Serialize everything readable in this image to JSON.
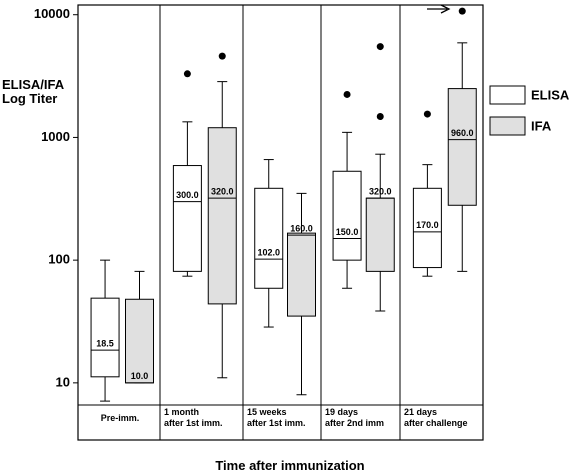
{
  "chart_data": {
    "type": "box",
    "y_title": "ELISA/IFA\nLog Titer",
    "x_title": "Time after immunization",
    "categories": [
      "Pre-imm.",
      "1 month\nafter 1st imm.",
      "15 weeks\nafter 1st imm.",
      "19 days\nafter 2nd imm",
      "21 days\nafter challenge"
    ],
    "log_scale": true,
    "ylim": [
      6.6,
      12000
    ],
    "yticks": [
      10,
      100,
      1000,
      10000
    ],
    "series": [
      {
        "name": "ELISA",
        "color": "#ffffff",
        "low": [
          7.1,
          74,
          28.5,
          59,
          74
        ],
        "q1": [
          11.2,
          81,
          59,
          100,
          87
        ],
        "median": [
          18.5,
          300,
          102,
          150,
          170
        ],
        "q3": [
          49,
          590,
          385,
          530,
          385
        ],
        "high": [
          100,
          1340,
          660,
          1100,
          600
        ],
        "value_labels": [
          "18.5",
          "300.0",
          "102.0",
          "150.0",
          "170.0"
        ],
        "outliers": [
          [],
          [
            3300
          ],
          [],
          [
            2240
          ],
          [
            1550
          ]
        ]
      },
      {
        "name": "IFA",
        "color": "#e0e0e0",
        "low": [
          10,
          11,
          8,
          38.5,
          81
        ],
        "q1": [
          10,
          44,
          35,
          81,
          280
        ],
        "median": [
          10,
          320,
          160,
          320,
          960
        ],
        "q3": [
          48,
          1200,
          166,
          320,
          2500
        ],
        "high": [
          81,
          2850,
          350,
          730,
          5900
        ],
        "value_labels": [
          "10.0",
          "320.0",
          "160.0",
          "320.0",
          "960.0"
        ],
        "outliers": [
          [],
          [
            4600
          ],
          [],
          [
            5500,
            1480
          ],
          [
            10700
          ]
        ]
      }
    ]
  }
}
